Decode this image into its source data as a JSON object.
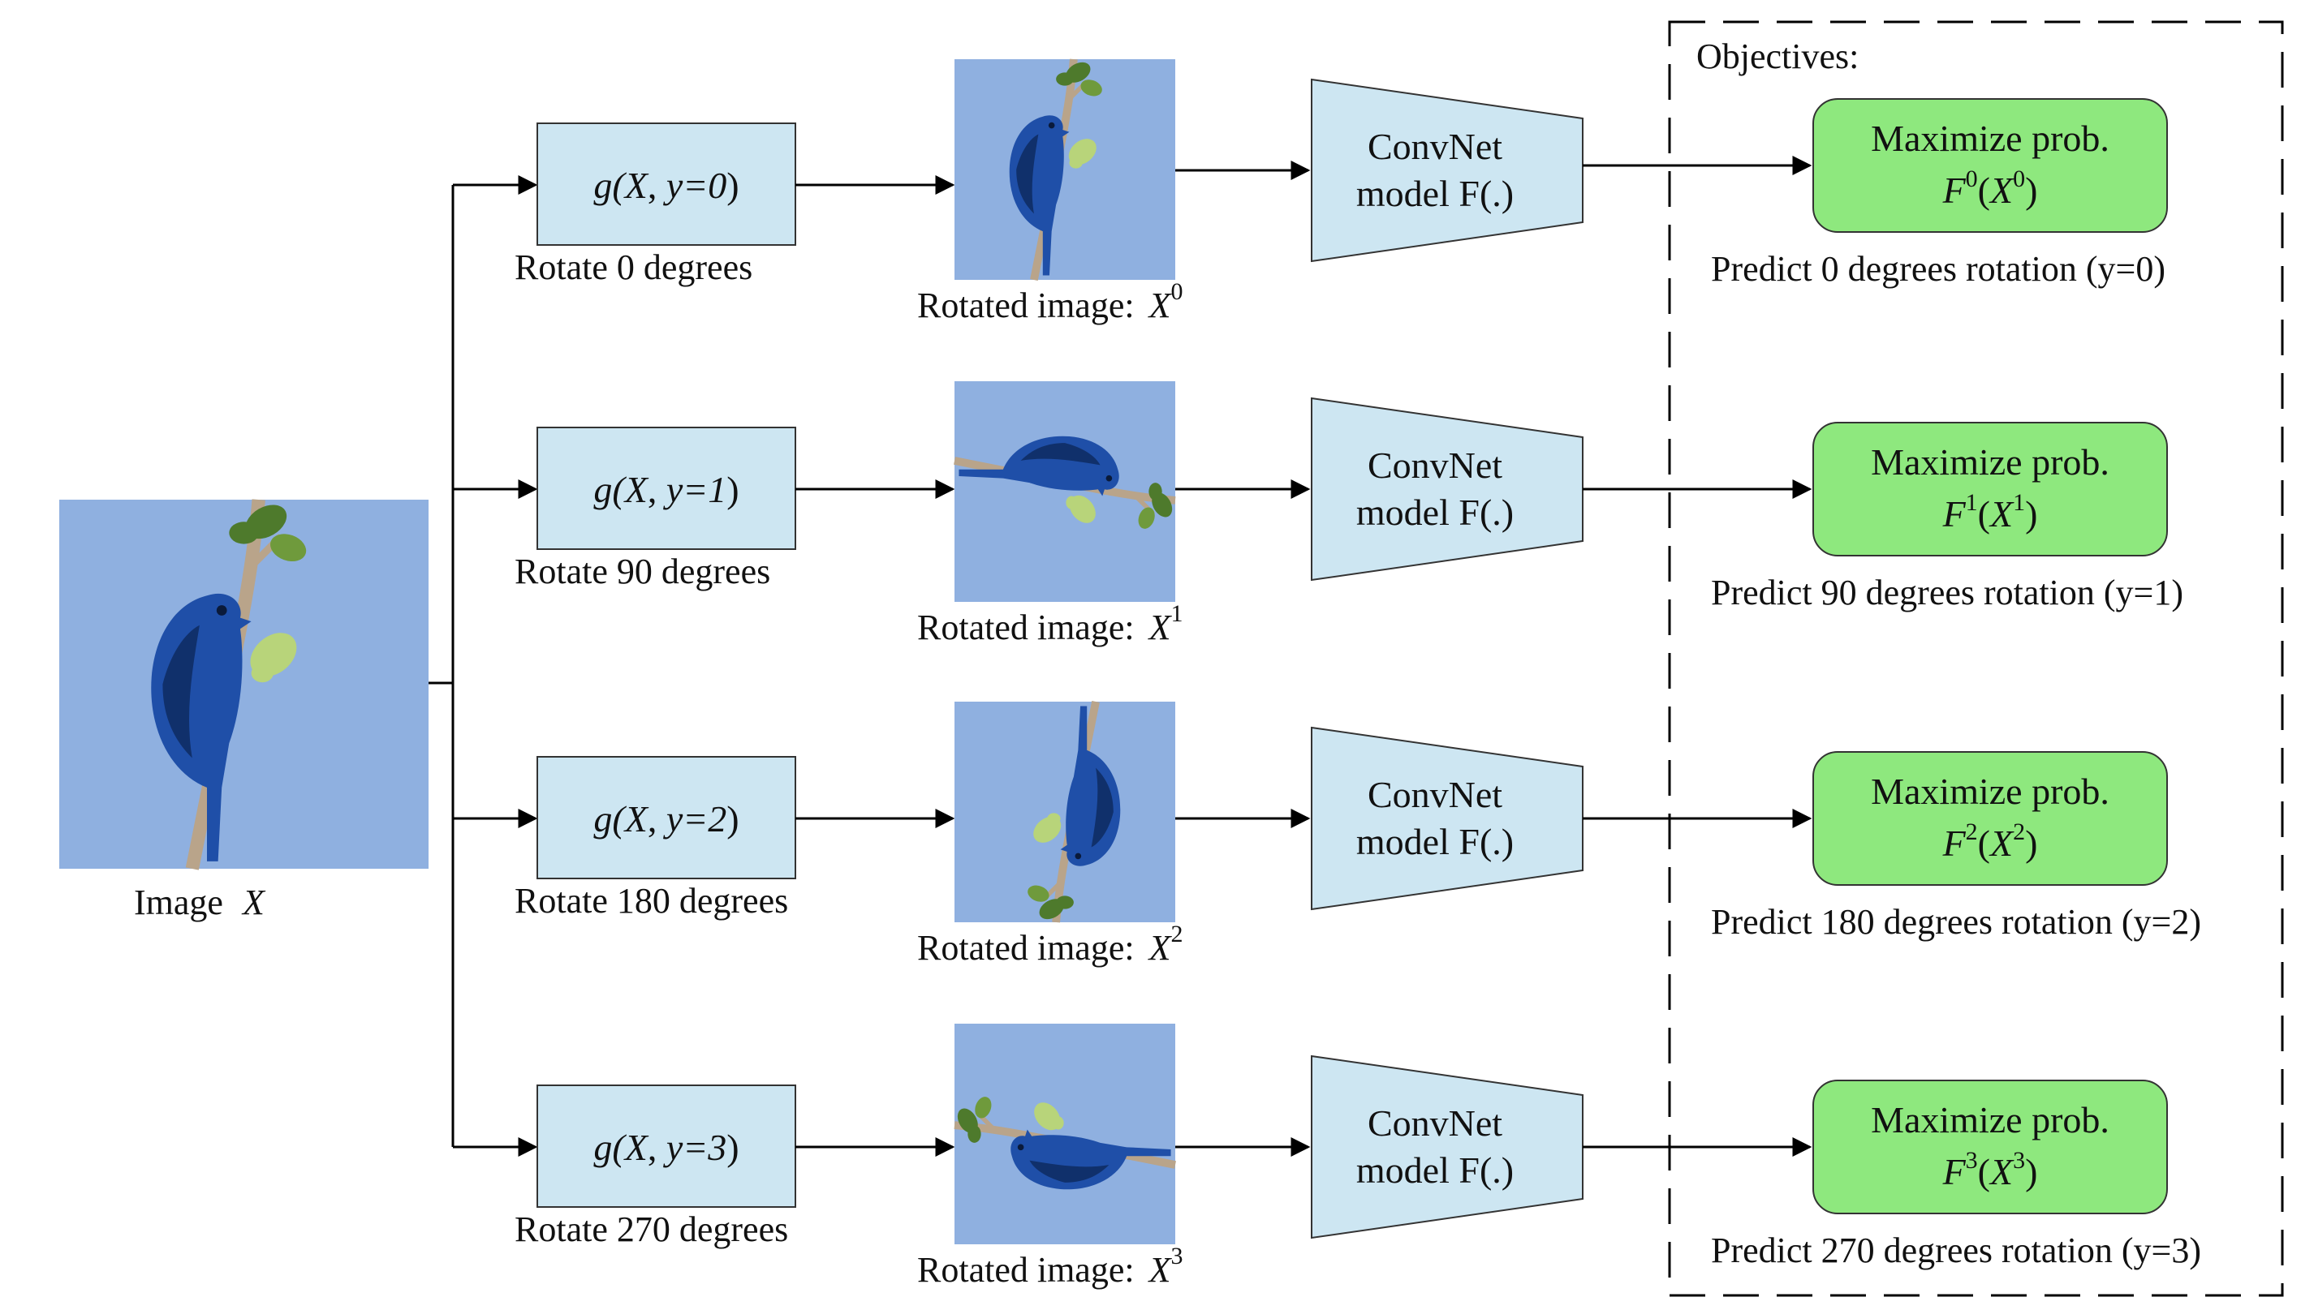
{
  "colors": {
    "sky": "#8fb0e0",
    "bird": "#1f4fa8",
    "bird_dark": "#10306b",
    "branch": "#b9a48a",
    "leaf": "#b8d47a",
    "leaf_dark": "#4e7a2c",
    "transform_box": "#cde6f2",
    "convnet": "#cde6f2",
    "objective_box": "#8ee87e",
    "stroke": "#333333"
  },
  "input": {
    "label": "Image",
    "var": "X"
  },
  "objectives_title": "Objectives:",
  "rows": [
    {
      "g_text": "g(X, y=0)",
      "g_prefix": "g(",
      "g_x": "X",
      "g_y": "y=0",
      "rotate_label": "Rotate 0 degrees",
      "angle": 0,
      "rotated_label": "Rotated image:",
      "rotated_var": "X",
      "rotated_sup": "0",
      "convnet_line1": "ConvNet",
      "convnet_line2": "model F(.)",
      "max_label": "Maximize prob.",
      "prob_f": "F",
      "prob_sup_f": "0",
      "prob_x": "X",
      "prob_sup_x": "0",
      "predict_label": "Predict 0 degrees rotation (y=0)"
    },
    {
      "g_text": "g(X, y=1)",
      "g_prefix": "g(",
      "g_x": "X",
      "g_y": "y=1",
      "rotate_label": "Rotate 90 degrees",
      "angle": 90,
      "rotated_label": "Rotated image:",
      "rotated_var": "X",
      "rotated_sup": "1",
      "convnet_line1": "ConvNet",
      "convnet_line2": "model F(.)",
      "max_label": "Maximize prob.",
      "prob_f": "F",
      "prob_sup_f": "1",
      "prob_x": "X",
      "prob_sup_x": "1",
      "predict_label": "Predict 90 degrees rotation (y=1)"
    },
    {
      "g_text": "g(X, y=2)",
      "g_prefix": "g(",
      "g_x": "X",
      "g_y": "y=2",
      "rotate_label": "Rotate 180 degrees",
      "angle": 180,
      "rotated_label": "Rotated image:",
      "rotated_var": "X",
      "rotated_sup": "2",
      "convnet_line1": "ConvNet",
      "convnet_line2": "model F(.)",
      "max_label": "Maximize prob.",
      "prob_f": "F",
      "prob_sup_f": "2",
      "prob_x": "X",
      "prob_sup_x": "2",
      "predict_label": "Predict 180 degrees rotation (y=2)"
    },
    {
      "g_text": "g(X, y=3)",
      "g_prefix": "g(",
      "g_x": "X",
      "g_y": "y=3",
      "rotate_label": "Rotate 270 degrees",
      "angle": 270,
      "rotated_label": "Rotated image:",
      "rotated_var": "X",
      "rotated_sup": "3",
      "convnet_line1": "ConvNet",
      "convnet_line2": "model F(.)",
      "max_label": "Maximize prob.",
      "prob_f": "F",
      "prob_sup_f": "3",
      "prob_x": "X",
      "prob_sup_x": "3",
      "predict_label": "Predict 270 degrees rotation (y=3)"
    }
  ]
}
